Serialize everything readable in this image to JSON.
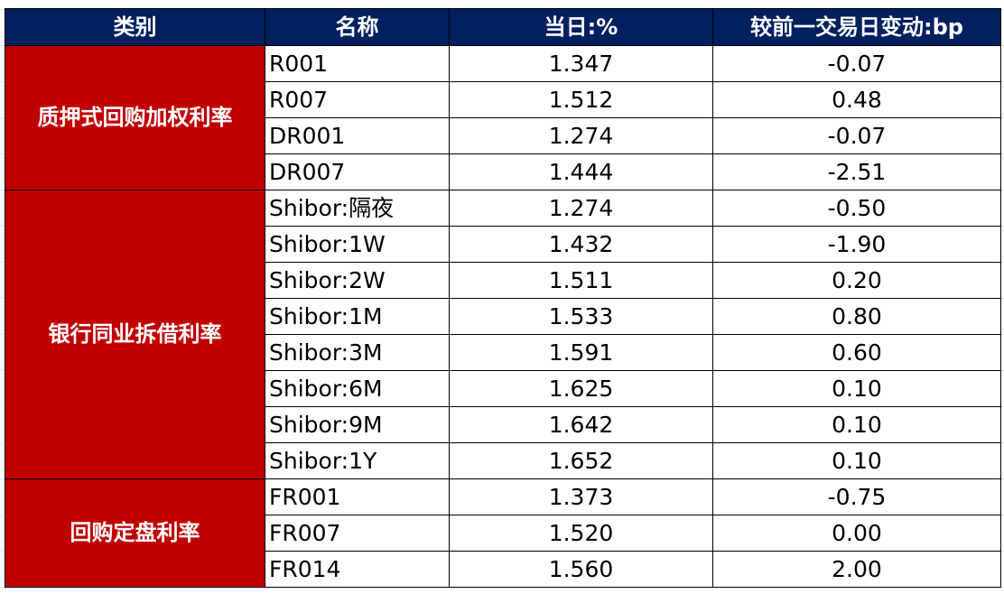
{
  "colors": {
    "header_bg": "#002060",
    "category_bg": "#C00000"
  },
  "headers": [
    "类别",
    "名称",
    "当日:%",
    "较前一交易日变动:bp"
  ],
  "groups": [
    {
      "category": "质押式回购加权利率",
      "rows": [
        {
          "name": "R001",
          "value": "1.347",
          "change": "-0.07"
        },
        {
          "name": "R007",
          "value": "1.512",
          "change": "0.48"
        },
        {
          "name": "DR001",
          "value": "1.274",
          "change": "-0.07"
        },
        {
          "name": "DR007",
          "value": "1.444",
          "change": "-2.51"
        }
      ]
    },
    {
      "category": "银行同业拆借利率",
      "rows": [
        {
          "name": "Shibor:隔夜",
          "value": "1.274",
          "change": "-0.50"
        },
        {
          "name": "Shibor:1W",
          "value": "1.432",
          "change": "-1.90"
        },
        {
          "name": "Shibor:2W",
          "value": "1.511",
          "change": "0.20"
        },
        {
          "name": "Shibor:1M",
          "value": "1.533",
          "change": "0.80"
        },
        {
          "name": "Shibor:3M",
          "value": "1.591",
          "change": "0.60"
        },
        {
          "name": "Shibor:6M",
          "value": "1.625",
          "change": "0.10"
        },
        {
          "name": "Shibor:9M",
          "value": "1.642",
          "change": "0.10"
        },
        {
          "name": "Shibor:1Y",
          "value": "1.652",
          "change": "0.10"
        }
      ]
    },
    {
      "category": "回购定盘利率",
      "rows": [
        {
          "name": "FR001",
          "value": "1.373",
          "change": "-0.75"
        },
        {
          "name": "FR007",
          "value": "1.520",
          "change": "0.00"
        },
        {
          "name": "FR014",
          "value": "1.560",
          "change": "2.00"
        }
      ]
    }
  ]
}
